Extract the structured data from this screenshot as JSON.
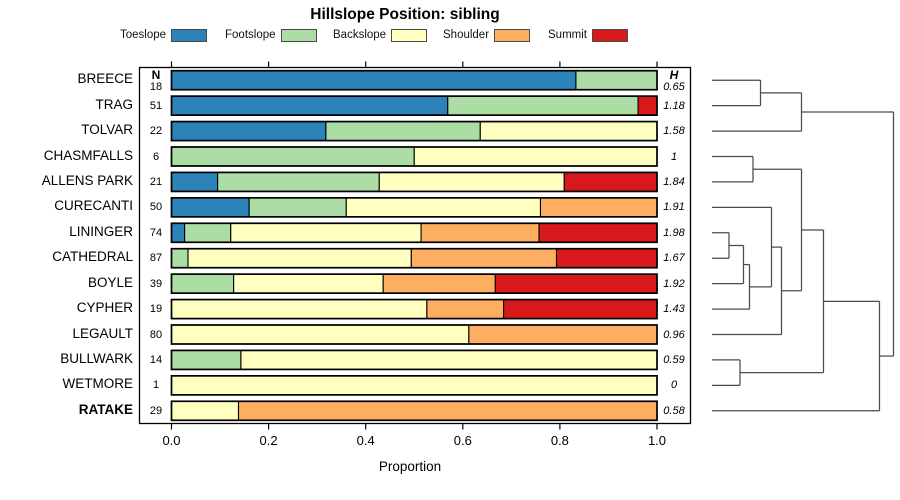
{
  "title": "Hillslope Position: sibling",
  "axis": {
    "xlabel": "Proportion",
    "x_ticks": [
      "0.0",
      "0.2",
      "0.4",
      "0.6",
      "0.8",
      "1.0"
    ]
  },
  "columns": {
    "n_header": "N",
    "h_header": "H"
  },
  "legend": {
    "items": [
      {
        "label": "Toeslope",
        "color": "#2B83BA"
      },
      {
        "label": "Footslope",
        "color": "#ABDDA4"
      },
      {
        "label": "Backslope",
        "color": "#FFFFBF"
      },
      {
        "label": "Shoulder",
        "color": "#FDAE61"
      },
      {
        "label": "Summit",
        "color": "#D7191C"
      }
    ]
  },
  "chart_data": {
    "type": "bar",
    "stacked": true,
    "orientation": "horizontal",
    "title": "Hillslope Position: sibling",
    "xlabel": "Proportion",
    "xlim": [
      0,
      1
    ],
    "grid": false,
    "categories": [
      "Toeslope",
      "Footslope",
      "Backslope",
      "Shoulder",
      "Summit"
    ],
    "colors": [
      "#2B83BA",
      "#ABDDA4",
      "#FFFFBF",
      "#FDAE61",
      "#D7191C"
    ],
    "rows": [
      {
        "label": "BREECE",
        "n": "18",
        "h": "0.65",
        "bold": false,
        "proportions": [
          0.833,
          0.167,
          0,
          0,
          0
        ]
      },
      {
        "label": "TRAG",
        "n": "51",
        "h": "1.18",
        "bold": false,
        "proportions": [
          0.569,
          0.392,
          0,
          0,
          0.039
        ]
      },
      {
        "label": "TOLVAR",
        "n": "22",
        "h": "1.58",
        "bold": false,
        "proportions": [
          0.318,
          0.318,
          0.364,
          0,
          0
        ]
      },
      {
        "label": "CHASMFALLS",
        "n": "6",
        "h": "1",
        "bold": false,
        "proportions": [
          0,
          0.5,
          0.5,
          0,
          0
        ]
      },
      {
        "label": "ALLENS PARK",
        "n": "21",
        "h": "1.84",
        "bold": false,
        "proportions": [
          0.095,
          0.333,
          0.381,
          0,
          0.191
        ]
      },
      {
        "label": "CURECANTI",
        "n": "50",
        "h": "1.91",
        "bold": false,
        "proportions": [
          0.16,
          0.2,
          0.4,
          0.24,
          0
        ]
      },
      {
        "label": "LININGER",
        "n": "74",
        "h": "1.98",
        "bold": false,
        "proportions": [
          0.027,
          0.095,
          0.392,
          0.243,
          0.243
        ]
      },
      {
        "label": "CATHEDRAL",
        "n": "87",
        "h": "1.67",
        "bold": false,
        "proportions": [
          0,
          0.034,
          0.46,
          0.299,
          0.207
        ]
      },
      {
        "label": "BOYLE",
        "n": "39",
        "h": "1.92",
        "bold": false,
        "proportions": [
          0,
          0.128,
          0.308,
          0.231,
          0.333
        ]
      },
      {
        "label": "CYPHER",
        "n": "19",
        "h": "1.43",
        "bold": false,
        "proportions": [
          0,
          0,
          0.526,
          0.158,
          0.316
        ]
      },
      {
        "label": "LEGAULT",
        "n": "80",
        "h": "0.96",
        "bold": false,
        "proportions": [
          0,
          0,
          0.6125,
          0.3875,
          0
        ]
      },
      {
        "label": "BULLWARK",
        "n": "14",
        "h": "0.59",
        "bold": false,
        "proportions": [
          0,
          0.143,
          0.857,
          0,
          0
        ]
      },
      {
        "label": "WETMORE",
        "n": "1",
        "h": "0",
        "bold": false,
        "proportions": [
          0,
          0,
          1,
          0,
          0
        ]
      },
      {
        "label": "RATAKE",
        "n": "29",
        "h": "0.58",
        "bold": true,
        "proportions": [
          0,
          0,
          0.138,
          0.862,
          0
        ]
      }
    ],
    "dendrogram": {
      "merge_x": 893.5,
      "children": [
        {
          "merge_x": 801.5,
          "children": [
            {
              "merge_x": 760.5,
              "children": [
                {
                  "leaf": "BREECE"
                },
                {
                  "leaf": "TRAG"
                }
              ]
            },
            {
              "leaf": "TOLVAR"
            }
          ]
        },
        {
          "merge_x": 879.5,
          "children": [
            {
              "merge_x": 823.5,
              "children": [
                {
                  "merge_x": 801.5,
                  "children": [
                    {
                      "merge_x": 753,
                      "children": [
                        {
                          "leaf": "CHASMFALLS"
                        },
                        {
                          "leaf": "ALLENS PARK"
                        }
                      ]
                    },
                    {
                      "merge_x": 781.5,
                      "children": [
                        {
                          "merge_x": 771.5,
                          "children": [
                            {
                              "leaf": "CURECANTI"
                            },
                            {
                              "merge_x": 749.5,
                              "children": [
                                {
                                  "merge_x": 743.5,
                                  "children": [
                                    {
                                      "merge_x": 729,
                                      "children": [
                                        {
                                          "leaf": "LININGER"
                                        },
                                        {
                                          "leaf": "CATHEDRAL"
                                        }
                                      ]
                                    },
                                    {
                                      "leaf": "BOYLE"
                                    }
                                  ]
                                },
                                {
                                  "leaf": "CYPHER"
                                }
                              ]
                            }
                          ]
                        },
                        {
                          "leaf": "LEGAULT"
                        }
                      ]
                    }
                  ]
                },
                {
                  "merge_x": 740,
                  "children": [
                    {
                      "leaf": "BULLWARK"
                    },
                    {
                      "leaf": "WETMORE"
                    }
                  ]
                }
              ]
            },
            {
              "leaf": "RATAKE"
            }
          ]
        }
      ]
    }
  }
}
